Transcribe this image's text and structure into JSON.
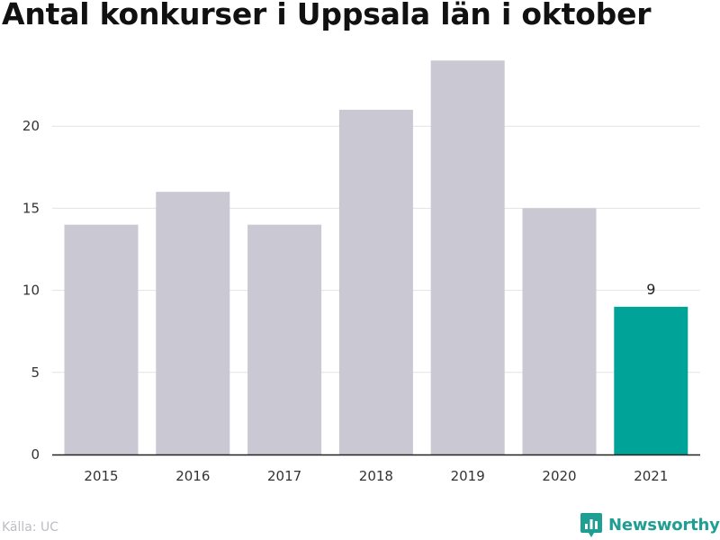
{
  "chart_data": {
    "type": "bar",
    "title": "Antal konkurser i Uppsala län i oktober",
    "categories": [
      "2015",
      "2016",
      "2017",
      "2018",
      "2019",
      "2020",
      "2021"
    ],
    "values": [
      14,
      16,
      14,
      21,
      24,
      15,
      9
    ],
    "highlight_index": 6,
    "data_labels": [
      {
        "index": 6,
        "text": "9"
      }
    ],
    "xlabel": "",
    "ylabel": "",
    "ylim": [
      0,
      25
    ],
    "yticks": [
      0,
      5,
      10,
      15,
      20
    ],
    "grid": true,
    "legend": null
  },
  "colors": {
    "bar": "#c9c8d3",
    "highlight": "#00a398",
    "grid": "#e3e3e3",
    "axis": "#222222",
    "brand": "#1f9e93"
  },
  "source": "Källa: UC",
  "brand": {
    "name": "Newsworthy",
    "icon": "newsworthy-logo-icon"
  }
}
